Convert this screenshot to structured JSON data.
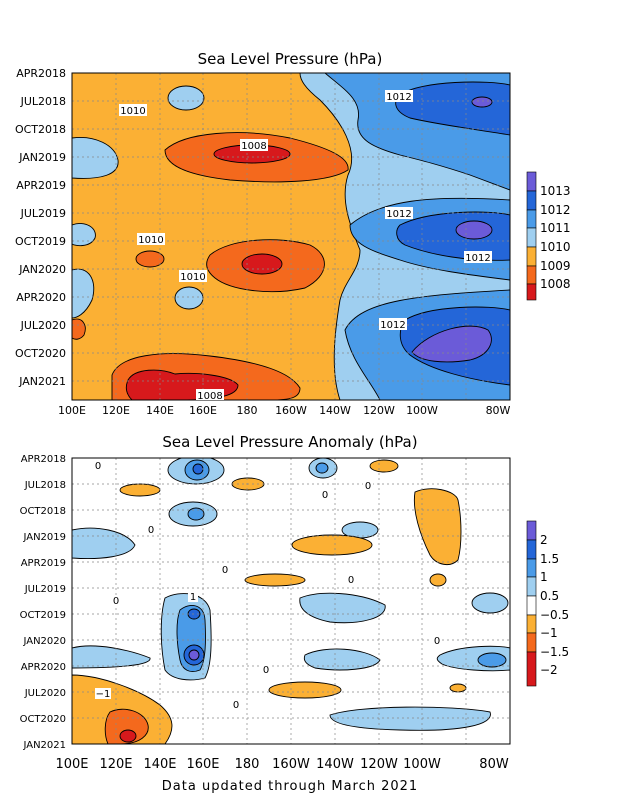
{
  "colors": {
    "v1008": "#d7191c",
    "v1009": "#f4691d",
    "v1010": "#fbb034",
    "v1011": "#9fcff0",
    "v1012": "#4a9be8",
    "v1013": "#2466d8",
    "v1014": "#6b5bd8",
    "a_m2": "#d7191c",
    "a_m15": "#f4691d",
    "a_m1": "#fbb034",
    "a_0": "#ffffff",
    "a_05": "#9fcff0",
    "a_1": "#4a9be8",
    "a_15": "#2466d8",
    "a_2": "#6b5bd8"
  },
  "footer": "Data updated through March 2021",
  "chart_data": [
    {
      "type": "heatmap",
      "title": "Sea Level Pressure (hPa)",
      "x_ticks": [
        "100E",
        "120E",
        "140E",
        "160E",
        "180",
        "160W",
        "140W",
        "120W",
        "100W",
        "80W"
      ],
      "y_ticks": [
        "APR2018",
        "JUL2018",
        "OCT2018",
        "JAN2019",
        "APR2019",
        "JUL2019",
        "OCT2019",
        "JAN2020",
        "APR2020",
        "JUL2020",
        "OCT2020",
        "JAN2021"
      ],
      "colorbar": [
        "1013",
        "1012",
        "1011",
        "1010",
        "1009",
        "1008"
      ],
      "contour_labels": [
        "1010",
        "1012",
        "1008",
        "1012",
        "1010",
        "1012",
        "1010",
        "1012",
        "1008"
      ]
    },
    {
      "type": "heatmap",
      "title": "Sea Level Pressure Anomaly (hPa)",
      "x_ticks": [
        "100E",
        "120E",
        "140E",
        "160E",
        "180",
        "160W",
        "140W",
        "120W",
        "100W",
        "80W"
      ],
      "y_ticks": [
        "APR2018",
        "JUL2018",
        "OCT2018",
        "JAN2019",
        "APR2019",
        "JUL2019",
        "OCT2019",
        "JAN2020",
        "APR2020",
        "JUL2020",
        "OCT2020",
        "JAN2021"
      ],
      "colorbar": [
        "2",
        "1.5",
        "1",
        "0.5",
        "−0.5",
        "−1",
        "−1.5",
        "−2"
      ],
      "contour_labels": [
        "0",
        "0",
        "0",
        "0",
        "0",
        "0",
        "1",
        "0",
        "0",
        "0",
        "−1",
        "0"
      ]
    }
  ]
}
